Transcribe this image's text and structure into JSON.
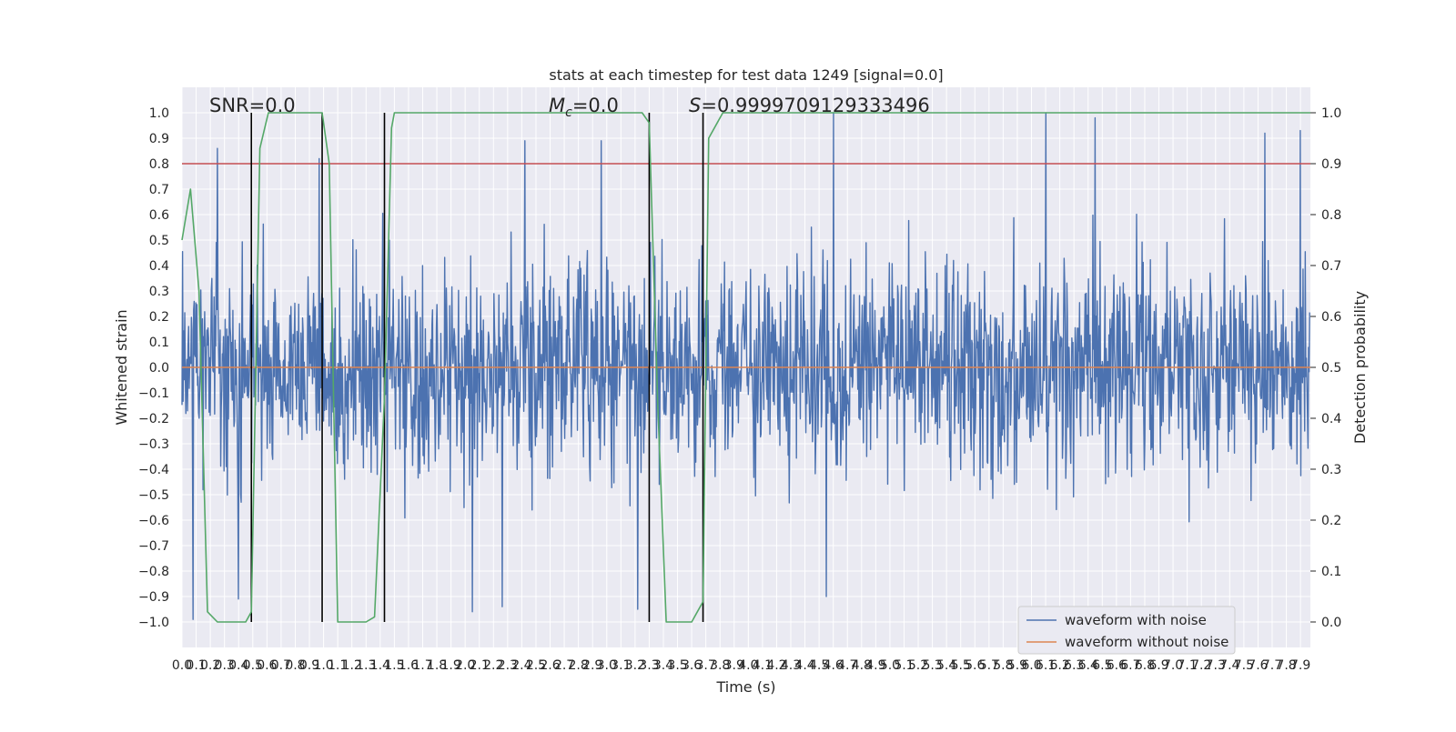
{
  "chart_data": {
    "type": "line",
    "title": "stats at each timestep for test data 1249 [signal=0.0]",
    "xlabel": "Time (s)",
    "ylabel": "Whitened strain",
    "y2label": "Detection probability",
    "xlim": [
      0.0,
      7.97
    ],
    "ylim": [
      -1.1,
      1.1
    ],
    "y2lim": [
      -0.05,
      1.05
    ],
    "x_tick_step": 0.1,
    "y_ticks": [
      -1.0,
      -0.9,
      -0.8,
      -0.7,
      -0.6,
      -0.5,
      -0.4,
      -0.3,
      -0.2,
      -0.1,
      0.0,
      0.1,
      0.2,
      0.3,
      0.4,
      0.5,
      0.6,
      0.7,
      0.8,
      0.9,
      1.0
    ],
    "y2_ticks": [
      0.0,
      0.1,
      0.2,
      0.3,
      0.4,
      0.5,
      0.6,
      0.7,
      0.8,
      0.9,
      1.0
    ],
    "grid": true,
    "legend_position": "bottom-right",
    "annotations": [
      {
        "id": "snr",
        "text": "SNR=0.0"
      },
      {
        "id": "mc",
        "text": "=0.0",
        "math_symbol": "M",
        "math_subscript": "c"
      },
      {
        "id": "s",
        "text": "=0.9999709129333496",
        "math_symbol": "S"
      }
    ],
    "threshold": {
      "value": 0.9,
      "axis": "y2",
      "color": "#c44e52"
    },
    "trigger_lines_x": [
      0.49,
      0.99,
      1.43,
      3.3,
      3.68
    ],
    "series": [
      {
        "name": "waveform with noise",
        "axis": "y",
        "color": "#4c72b0",
        "kind": "noise",
        "sample_rate": 256,
        "std": 0.2,
        "clip": [
          -1.0,
          1.0
        ],
        "spikes": [
          {
            "x": 0.25,
            "y": 0.86
          },
          {
            "x": 0.97,
            "y": 0.82
          },
          {
            "x": 2.42,
            "y": 0.89
          },
          {
            "x": 2.96,
            "y": 0.89
          },
          {
            "x": 4.6,
            "y": 1.0
          },
          {
            "x": 6.1,
            "y": 1.0
          },
          {
            "x": 6.45,
            "y": 0.98
          },
          {
            "x": 7.65,
            "y": 0.92
          },
          {
            "x": 7.9,
            "y": 0.93
          },
          {
            "x": 0.08,
            "y": -0.99
          },
          {
            "x": 2.05,
            "y": -0.96
          },
          {
            "x": 2.26,
            "y": -0.94
          },
          {
            "x": 3.22,
            "y": -0.95
          },
          {
            "x": 4.55,
            "y": -0.9
          },
          {
            "x": 0.4,
            "y": -0.91
          }
        ]
      },
      {
        "name": "waveform without noise",
        "axis": "y",
        "color": "#dd8452",
        "x": [
          0.0,
          7.97
        ],
        "values": [
          0.0,
          0.0
        ]
      },
      {
        "name": "",
        "axis": "y2",
        "color": "#55a868",
        "x": [
          0.0,
          0.06,
          0.12,
          0.18,
          0.25,
          0.35,
          0.45,
          0.49,
          0.55,
          0.61,
          0.68,
          0.99,
          1.04,
          1.1,
          1.15,
          1.3,
          1.36,
          1.43,
          1.48,
          1.5,
          1.54,
          3.25,
          3.3,
          3.36,
          3.42,
          3.52,
          3.6,
          3.68,
          3.72,
          3.78,
          3.82,
          7.97
        ],
        "values": [
          0.75,
          0.85,
          0.65,
          0.02,
          0.0,
          0.0,
          0.0,
          0.02,
          0.93,
          1.0,
          1.0,
          1.0,
          0.9,
          0.0,
          0.0,
          0.0,
          0.01,
          0.44,
          0.97,
          1.0,
          1.0,
          1.0,
          0.98,
          0.43,
          0.0,
          0.0,
          0.0,
          0.04,
          0.95,
          0.98,
          1.0,
          1.0
        ]
      }
    ]
  }
}
